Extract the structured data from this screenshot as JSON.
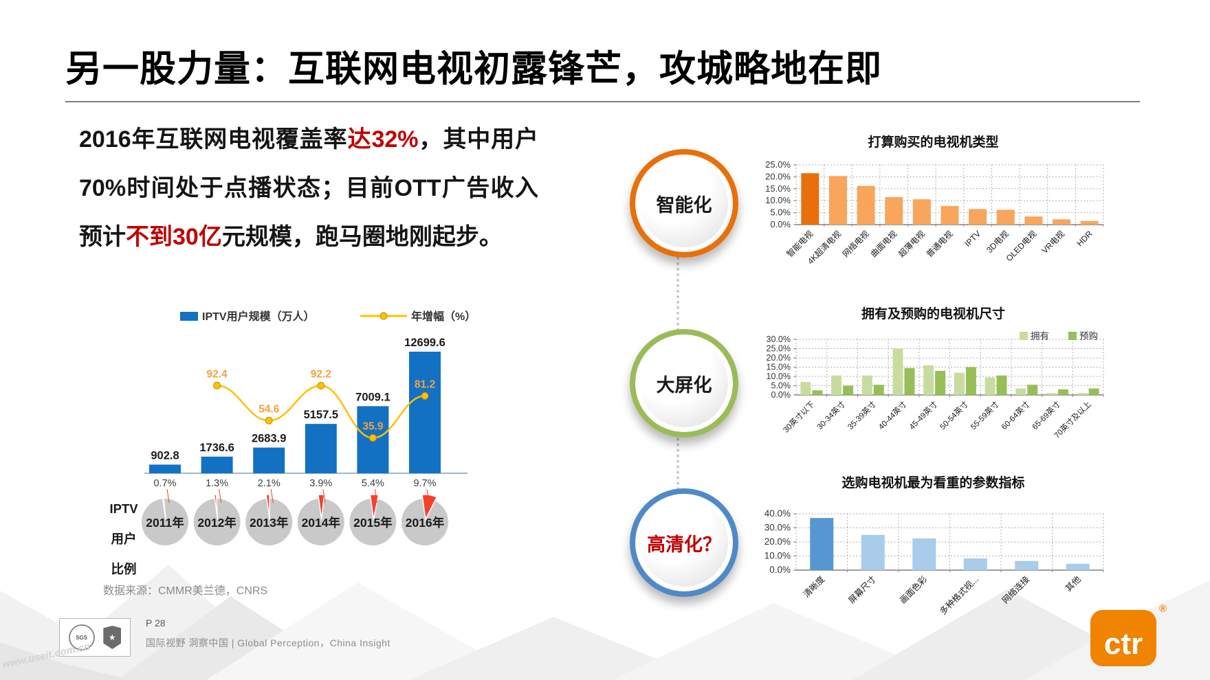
{
  "slide": {
    "title": "另一股力量：互联网电视初露锋芒，攻城略地在即",
    "intro": {
      "seg1": "2016年互联网电视覆盖率",
      "hl1": "达32%",
      "seg2": "，其中用户70%时间处于点播状态；目前OTT广告收入预计",
      "hl2": "不到30亿",
      "seg3": "元规模，跑马圈地刚起步。",
      "highlight_color": "#C00000"
    },
    "source_note": "数据来源：CMMR美兰德，CNRS",
    "footer": {
      "page_label": "P 28",
      "tagline": "国际视野 洞察中国 |  Global Perception，China Insight",
      "cert_label": "SGS",
      "cert_star": "★",
      "watermark": "www.useit.com.cn",
      "logo_text": "ctr",
      "logo_reg": "®",
      "logo_color": "#F08300"
    }
  },
  "pillars": {
    "connector_style": "dotted",
    "items": [
      {
        "label": "智能化",
        "ring_color": "#E8700A",
        "label_color": "#1a1a1a"
      },
      {
        "label": "大屏化",
        "ring_color": "#9BBB59",
        "label_color": "#1a1a1a"
      },
      {
        "label": "高清化？",
        "ring_color": "#5089C6",
        "label_color": "#C00000"
      }
    ]
  },
  "chart_data": [
    {
      "type": "bar+line",
      "legend": [
        {
          "name": "IPTV用户规模（万人）",
          "color": "#1371C3"
        },
        {
          "name": "年增幅（%）",
          "color": "#FFC000"
        }
      ],
      "categories": [
        "2011年",
        "2012年",
        "2013年",
        "2014年",
        "2015年",
        "2016年"
      ],
      "bars": {
        "name": "IPTV用户规模（万人）",
        "color": "#1371C3",
        "values": [
          902.8,
          1736.6,
          2683.9,
          5157.5,
          7009.1,
          12699.6
        ]
      },
      "line": {
        "name": "年增幅（%）",
        "color": "#FFC000",
        "label_color": "#F2A33C",
        "values": [
          null,
          92.4,
          54.6,
          92.2,
          35.9,
          81.2
        ]
      },
      "pies": {
        "label_lines": [
          "IPTV",
          "用户",
          "比例"
        ],
        "values_pct": [
          0.7,
          1.3,
          2.1,
          3.9,
          5.4,
          9.7
        ],
        "slice_color": "#F5402C",
        "base_color": "#C9C9C9"
      }
    },
    {
      "type": "bar",
      "title": "打算购买的电视机类型",
      "categories": [
        "智能电视",
        "4K超清电视",
        "网络电视",
        "曲面电视",
        "超薄电视",
        "普通电视",
        "IPTV",
        "3D电视",
        "OLED电视",
        "VR电视",
        "HDR"
      ],
      "values": [
        21.5,
        20.3,
        16.2,
        11.5,
        10.6,
        7.8,
        6.5,
        6.2,
        3.4,
        2.2,
        1.5
      ],
      "ylim": [
        0,
        25
      ],
      "ytick_step": 5,
      "grid": true,
      "bar_color": "#F9A55B",
      "highlight_index": 0,
      "highlight_color": "#E8700C"
    },
    {
      "type": "grouped-bar",
      "title": "拥有及预购的电视机尺寸",
      "categories": [
        "30英寸以下",
        "30-34英寸",
        "35-39英寸",
        "40-44英寸",
        "45-49英寸",
        "50-54英寸",
        "55-59英寸",
        "60-64英寸",
        "65-69英寸",
        "70英寸及以上"
      ],
      "series": [
        {
          "name": "拥有",
          "color": "#C9DCA0",
          "values": [
            7,
            10.5,
            10.5,
            25,
            16,
            12,
            9.5,
            3.5,
            1,
            1
          ]
        },
        {
          "name": "预购",
          "color": "#97BE57",
          "values": [
            2.5,
            5,
            5.5,
            14.5,
            13,
            15,
            10.5,
            5.5,
            3,
            3.5
          ]
        }
      ],
      "ylim": [
        0,
        30
      ],
      "ytick_step": 5,
      "grid": true,
      "legend_position": "top-right"
    },
    {
      "type": "bar",
      "title": "选购电视机最为看重的参数指标",
      "categories": [
        "清晰度",
        "屏幕尺寸",
        "画面色彩",
        "多种格式视...",
        "网络连接",
        "其他"
      ],
      "values": [
        37,
        25,
        22.5,
        8.3,
        6.5,
        4.5
      ],
      "ylim": [
        0,
        40
      ],
      "ytick_step": 10,
      "grid": true,
      "bar_color": "#A9CCEA",
      "highlight_index": 0,
      "highlight_color": "#5596D3"
    }
  ]
}
